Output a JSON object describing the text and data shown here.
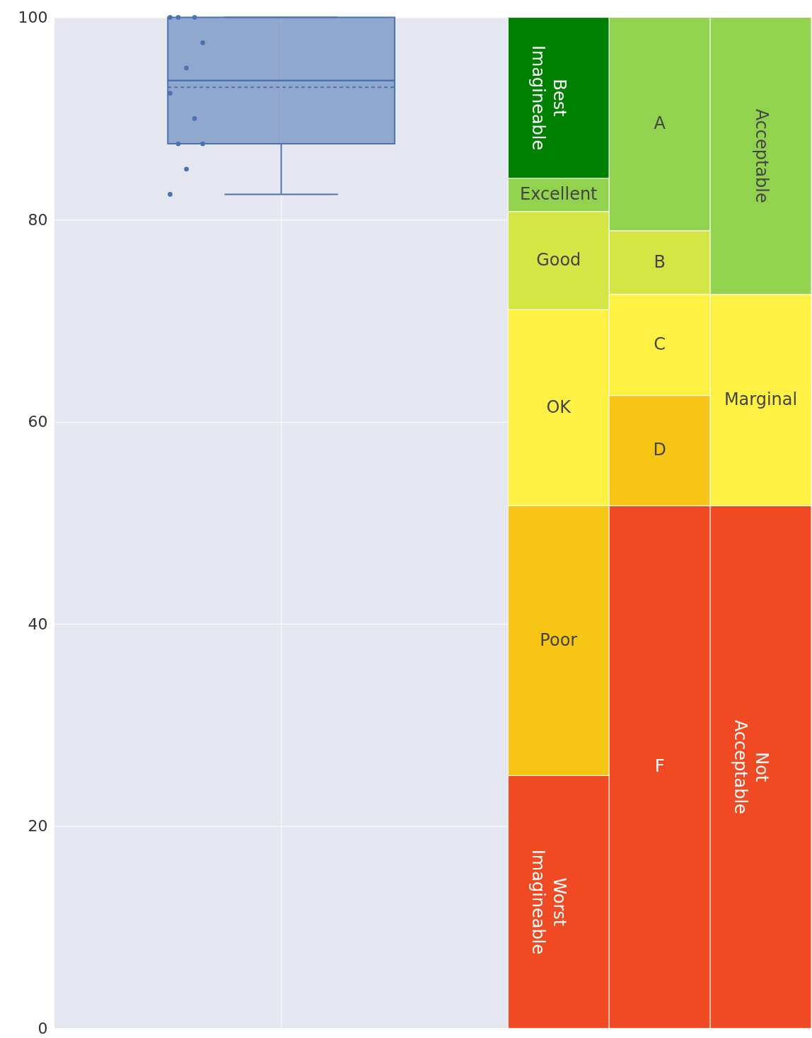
{
  "chart_data": {
    "type": "box",
    "categories": [
      null
    ],
    "ylim": [
      0,
      100
    ],
    "yticks": [
      0,
      20,
      40,
      60,
      80,
      100
    ],
    "grid": true,
    "tick_labels": "y",
    "series": [
      {
        "type": "box",
        "color": "#4c72b0",
        "marker": "circle",
        "boxes": [
          {
            "low": 82.5,
            "q1": 87.5,
            "median": 93.75,
            "q3": 100,
            "high": 100,
            "mean": 93.1,
            "outliers": [
              100,
              100,
              100,
              97.5,
              95,
              92.5,
              90,
              87.5,
              87.5,
              85,
              82.5
            ]
          }
        ]
      }
    ],
    "bands": [
      {
        "axis": "y",
        "from": 0,
        "to": 25,
        "label": "Worst Imagineable",
        "color": "#f04a25"
      },
      {
        "axis": "y",
        "from": 25,
        "to": 51.7,
        "label": "Poor",
        "color": "#f7c515"
      },
      {
        "axis": "y",
        "from": 51.7,
        "to": 71.1,
        "label": "OK",
        "color": "#fff143"
      },
      {
        "axis": "y",
        "from": 71.1,
        "to": 80.8,
        "label": "Good",
        "color": "#d4e645"
      },
      {
        "axis": "y",
        "from": 80.8,
        "to": 84.1,
        "label": "Excellent",
        "color": "#91d34f"
      },
      {
        "axis": "y",
        "from": 84.1,
        "to": 100,
        "label": "Best Imagineable",
        "color": "#008000"
      },
      {
        "axis": "y",
        "from": 0,
        "to": 51.7,
        "label": "F",
        "color": "#f04a25"
      },
      {
        "axis": "y",
        "from": 51.7,
        "to": 62.6,
        "label": "D",
        "color": "#f7c515"
      },
      {
        "axis": "y",
        "from": 62.6,
        "to": 72.6,
        "label": "C",
        "color": "#fff143"
      },
      {
        "axis": "y",
        "from": 72.6,
        "to": 78.9,
        "label": "B",
        "color": "#d4e645"
      },
      {
        "axis": "y",
        "from": 78.9,
        "to": 100,
        "label": "A",
        "color": "#91d34f"
      },
      {
        "axis": "y",
        "from": 0,
        "to": 51.7,
        "label": "Not Acceptable",
        "color": "#f04a25"
      },
      {
        "axis": "y",
        "from": 51.7,
        "to": 72.6,
        "label": "Marginal",
        "color": "#fff143"
      },
      {
        "axis": "y",
        "from": 72.6,
        "to": 100,
        "label": "Acceptable",
        "color": "#91d34f"
      }
    ]
  }
}
